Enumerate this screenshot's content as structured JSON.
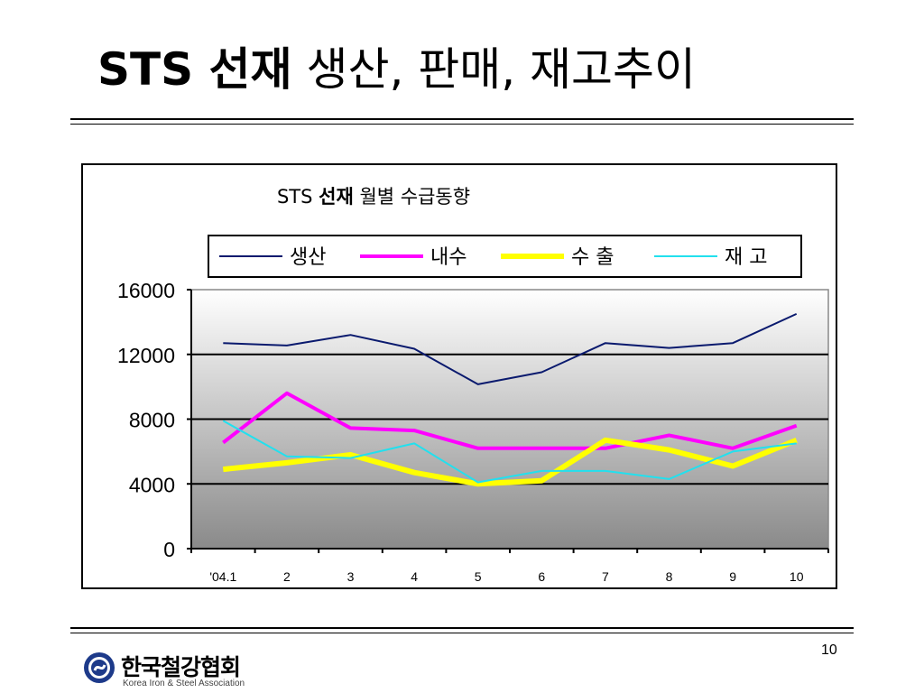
{
  "slide": {
    "title_bold": "STS 선재",
    "title_rest": "생산, 판매, 재고추이",
    "page_number": "10"
  },
  "logo": {
    "name": "한국철강협회",
    "subtitle": "Korea Iron & Steel Association"
  },
  "chart_data": {
    "type": "line",
    "title_prefix": "STS",
    "title_bold": "선재",
    "title_suffix": "월별 수급동향",
    "categories": [
      "'04.1",
      "2",
      "3",
      "4",
      "5",
      "6",
      "7",
      "8",
      "9",
      "10"
    ],
    "ylim": [
      0,
      16000
    ],
    "yticks": [
      "0",
      "4000",
      "8000",
      "12000",
      "16000"
    ],
    "grid": true,
    "legend_position": "top",
    "series": [
      {
        "name": "생산",
        "color": "#0a1a6e",
        "values": [
          12700,
          12550,
          13200,
          12350,
          10150,
          10900,
          12700,
          12400,
          12700,
          14500
        ]
      },
      {
        "name": "내수",
        "color": "#ff00ff",
        "values": [
          6550,
          9600,
          7450,
          7300,
          6200,
          6200,
          6200,
          7000,
          6200,
          7600
        ]
      },
      {
        "name": "수 출",
        "color": "#ffff00",
        "values": [
          4900,
          5300,
          5800,
          4700,
          4000,
          4200,
          6700,
          6100,
          5100,
          6700
        ]
      },
      {
        "name": "재 고",
        "color": "#22e0ee",
        "values": [
          7900,
          5700,
          5600,
          6500,
          4100,
          4800,
          4800,
          4300,
          6000,
          6500
        ]
      }
    ]
  }
}
